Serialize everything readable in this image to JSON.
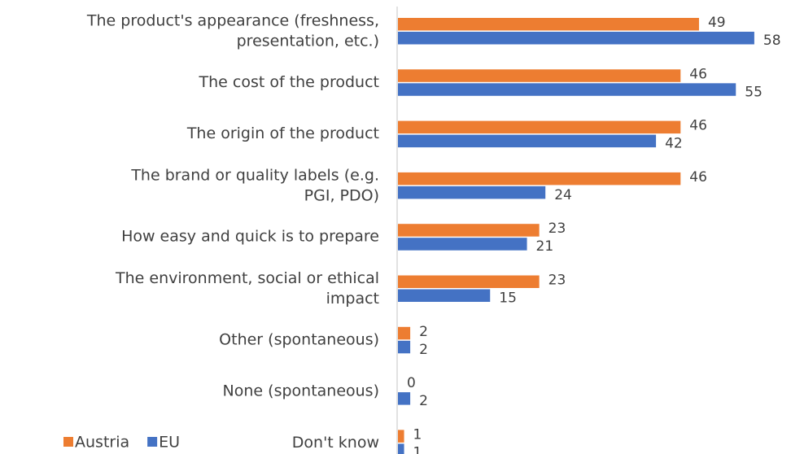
{
  "chart_data": {
    "type": "bar",
    "orientation": "horizontal",
    "categories": [
      "The product's appearance (freshness, presentation, etc.)",
      "The cost of the product",
      "The origin of the product",
      "The brand or quality labels (e.g. PGI, PDO)",
      "How easy and quick is to prepare",
      "The environment, social or ethical impact",
      "Other (spontaneous)",
      "None (spontaneous)",
      "Don't know"
    ],
    "series": [
      {
        "name": "Austria",
        "color": "#ed7d31",
        "values": [
          49,
          46,
          46,
          46,
          23,
          23,
          2,
          0,
          1
        ]
      },
      {
        "name": "EU",
        "color": "#4472c4",
        "values": [
          58,
          55,
          42,
          24,
          21,
          15,
          2,
          2,
          1
        ]
      }
    ],
    "xlim": [
      0,
      60
    ],
    "legend": "bottom-left"
  }
}
